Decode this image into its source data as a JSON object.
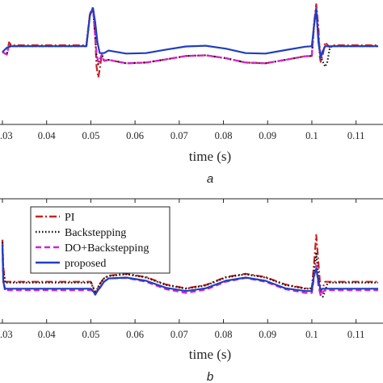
{
  "chart_data": [
    {
      "type": "line",
      "caption": "a",
      "xlabel": "time (s)",
      "ylabel": "",
      "xlim": [
        0.03,
        0.115
      ],
      "ylim": [
        -1.25,
        1.0
      ],
      "xticks": [
        0.03,
        0.04,
        0.05,
        0.06,
        0.07,
        0.08,
        0.09,
        0.1,
        0.11
      ],
      "xtick_labels": [
        ".03",
        "0.04",
        "0.05",
        "0.06",
        "0.07",
        "0.08",
        "0.09",
        "0.1",
        "0.11"
      ],
      "grid": false,
      "series": [
        {
          "key": "pi",
          "color": "#cc2222",
          "style": "dashdot",
          "x": [
            0.03,
            0.031,
            0.0315,
            0.032,
            0.049,
            0.0498,
            0.0505,
            0.051,
            0.0513,
            0.0517,
            0.052,
            0.0525,
            0.053,
            0.054,
            0.058,
            0.0625,
            0.067,
            0.0715,
            0.076,
            0.0805,
            0.085,
            0.0895,
            0.094,
            0.0985,
            0.1,
            0.1005,
            0.101,
            0.1015,
            0.1018,
            0.102,
            0.1025,
            0.103,
            0.104,
            0.105,
            0.115
          ],
          "y": [
            0.0,
            -0.05,
            0.2,
            0.14,
            0.14,
            0.78,
            0.92,
            0.3,
            -0.3,
            -0.52,
            -0.35,
            -0.05,
            -0.18,
            -0.16,
            -0.23,
            -0.215,
            -0.15,
            -0.08,
            -0.065,
            -0.125,
            -0.215,
            -0.23,
            -0.16,
            -0.085,
            -0.08,
            0.6,
            0.98,
            0.5,
            -0.1,
            -0.2,
            -0.05,
            0.2,
            0.1,
            0.14,
            0.14
          ]
        },
        {
          "key": "backstepping",
          "color": "#111111",
          "style": "dotted",
          "x": [
            0.03,
            0.031,
            0.0315,
            0.032,
            0.049,
            0.0498,
            0.0505,
            0.051,
            0.0513,
            0.0517,
            0.052,
            0.0525,
            0.053,
            0.054,
            0.058,
            0.0625,
            0.067,
            0.0715,
            0.076,
            0.0805,
            0.085,
            0.0895,
            0.094,
            0.0985,
            0.1,
            0.1005,
            0.101,
            0.1015,
            0.102,
            0.1025,
            0.103,
            0.1035,
            0.104,
            0.1045,
            0.105,
            0.115
          ],
          "y": [
            0.0,
            -0.05,
            0.15,
            0.12,
            0.12,
            0.78,
            0.9,
            0.3,
            -0.1,
            -0.25,
            -0.15,
            -0.05,
            -0.18,
            -0.16,
            -0.23,
            -0.215,
            -0.15,
            -0.08,
            -0.065,
            -0.125,
            -0.215,
            -0.23,
            -0.16,
            -0.085,
            -0.08,
            0.55,
            0.92,
            0.3,
            -0.1,
            -0.2,
            -0.3,
            -0.2,
            0.05,
            0.12,
            0.12,
            0.12
          ]
        },
        {
          "key": "do_backstepping",
          "color": "#d81fd8",
          "style": "dashed",
          "x": [
            0.03,
            0.031,
            0.0315,
            0.032,
            0.049,
            0.0498,
            0.0505,
            0.051,
            0.0513,
            0.0517,
            0.052,
            0.0525,
            0.053,
            0.054,
            0.058,
            0.0625,
            0.067,
            0.0715,
            0.076,
            0.0805,
            0.085,
            0.0895,
            0.094,
            0.0985,
            0.1,
            0.1005,
            0.101,
            0.1015,
            0.102,
            0.1025,
            0.103,
            0.115
          ],
          "y": [
            0.0,
            -0.05,
            0.14,
            0.12,
            0.12,
            0.78,
            0.88,
            0.3,
            -0.05,
            -0.2,
            -0.15,
            -0.05,
            -0.18,
            -0.16,
            -0.23,
            -0.215,
            -0.15,
            -0.08,
            -0.065,
            -0.125,
            -0.215,
            -0.23,
            -0.16,
            -0.085,
            -0.08,
            0.55,
            0.9,
            0.3,
            -0.1,
            0.05,
            0.12,
            0.12
          ]
        },
        {
          "key": "proposed",
          "color": "#1f3fbf",
          "style": "solid",
          "x": [
            0.03,
            0.031,
            0.032,
            0.049,
            0.0498,
            0.0505,
            0.051,
            0.0515,
            0.052,
            0.053,
            0.054,
            0.058,
            0.0625,
            0.067,
            0.0715,
            0.076,
            0.0805,
            0.085,
            0.0895,
            0.094,
            0.0985,
            0.1,
            0.1005,
            0.101,
            0.1015,
            0.102,
            0.1025,
            0.103,
            0.115
          ],
          "y": [
            0.0,
            0.09,
            0.12,
            0.12,
            0.75,
            0.9,
            0.6,
            0.2,
            -0.02,
            -0.02,
            0.03,
            -0.03,
            -0.02,
            0.05,
            0.115,
            0.13,
            0.07,
            -0.02,
            -0.03,
            0.04,
            0.11,
            0.12,
            0.55,
            0.88,
            0.2,
            -0.12,
            0.02,
            0.12,
            0.12
          ]
        }
      ]
    },
    {
      "type": "line",
      "caption": "b",
      "xlabel": "time (s)",
      "ylabel": "",
      "xlim": [
        0.03,
        0.115
      ],
      "ylim": [
        -0.55,
        1.7
      ],
      "xticks": [
        0.03,
        0.04,
        0.05,
        0.06,
        0.07,
        0.08,
        0.09,
        0.1,
        0.11
      ],
      "xtick_labels": [
        ".03",
        "0.04",
        "0.05",
        "0.06",
        "0.07",
        "0.08",
        "0.09",
        "0.1",
        "0.11"
      ],
      "grid": false,
      "legend": {
        "location": "upper-left",
        "entries": [
          "PI",
          "Backstepping",
          "DO+Backstepping",
          "proposed"
        ]
      },
      "series": [
        {
          "name": "PI",
          "key": "pi",
          "color": "#cc2222",
          "style": "dashdot",
          "x": [
            0.03,
            0.0302,
            0.0306,
            0.031,
            0.05,
            0.0505,
            0.051,
            0.0515,
            0.052,
            0.053,
            0.054,
            0.058,
            0.0625,
            0.067,
            0.0715,
            0.076,
            0.0805,
            0.085,
            0.0895,
            0.094,
            0.0985,
            0.1,
            0.1005,
            0.101,
            0.1015,
            0.102,
            0.1025,
            0.103,
            0.115
          ],
          "y": [
            1.1,
            0.5,
            0.2,
            0.2,
            0.2,
            0.1,
            -0.06,
            0.05,
            0.15,
            0.28,
            0.33,
            0.37,
            0.3,
            0.14,
            0.06,
            0.13,
            0.3,
            0.37,
            0.3,
            0.14,
            0.06,
            0.06,
            0.6,
            1.2,
            0.6,
            -0.02,
            0.08,
            0.2,
            0.2
          ]
        },
        {
          "name": "Backstepping",
          "key": "backstepping",
          "color": "#111111",
          "style": "dotted",
          "x": [
            0.03,
            0.0302,
            0.0306,
            0.031,
            0.05,
            0.0505,
            0.051,
            0.0515,
            0.052,
            0.053,
            0.054,
            0.058,
            0.0625,
            0.067,
            0.0715,
            0.076,
            0.0805,
            0.085,
            0.0895,
            0.094,
            0.0985,
            0.1,
            0.1005,
            0.101,
            0.1015,
            0.102,
            0.1025,
            0.103,
            0.1035,
            0.104,
            0.105,
            0.115
          ],
          "y": [
            1.05,
            0.45,
            0.18,
            0.18,
            0.18,
            0.08,
            -0.05,
            0.05,
            0.15,
            0.27,
            0.32,
            0.36,
            0.29,
            0.13,
            0.05,
            0.12,
            0.29,
            0.36,
            0.29,
            0.13,
            0.05,
            0.05,
            0.45,
            0.8,
            0.3,
            -0.1,
            -0.12,
            0.0,
            0.15,
            0.18,
            0.18,
            0.18
          ]
        },
        {
          "name": "DO+Backstepping",
          "key": "do_backstepping",
          "color": "#d81fd8",
          "style": "dashed",
          "x": [
            0.03,
            0.0302,
            0.0306,
            0.031,
            0.05,
            0.0505,
            0.051,
            0.0515,
            0.052,
            0.053,
            0.054,
            0.058,
            0.0625,
            0.067,
            0.0715,
            0.076,
            0.0805,
            0.085,
            0.0895,
            0.094,
            0.0985,
            0.1,
            0.1005,
            0.101,
            0.1015,
            0.102,
            0.1025,
            0.103,
            0.115
          ],
          "y": [
            0.9,
            0.2,
            0.0,
            0.02,
            0.02,
            0.0,
            -0.08,
            0.0,
            0.06,
            0.2,
            0.27,
            0.28,
            0.2,
            0.04,
            -0.04,
            0.03,
            0.2,
            0.28,
            0.2,
            0.04,
            -0.04,
            -0.04,
            0.3,
            0.55,
            0.1,
            -0.1,
            -0.02,
            0.02,
            0.02
          ]
        },
        {
          "name": "proposed",
          "key": "proposed",
          "color": "#1f3fbf",
          "style": "solid",
          "x": [
            0.03,
            0.0302,
            0.0306,
            0.031,
            0.05,
            0.0505,
            0.051,
            0.0515,
            0.052,
            0.053,
            0.054,
            0.058,
            0.0625,
            0.067,
            0.0715,
            0.076,
            0.0805,
            0.085,
            0.0895,
            0.094,
            0.0985,
            0.1,
            0.1005,
            0.101,
            0.1015,
            0.102,
            0.1025,
            0.103,
            0.115
          ],
          "y": [
            1.0,
            0.2,
            0.05,
            0.05,
            0.05,
            0.0,
            -0.07,
            0.0,
            0.07,
            0.2,
            0.27,
            0.29,
            0.22,
            0.07,
            0.0,
            0.06,
            0.22,
            0.29,
            0.22,
            0.06,
            0.0,
            0.0,
            0.35,
            0.48,
            0.2,
            0.03,
            0.05,
            0.05,
            0.05
          ]
        }
      ]
    }
  ]
}
